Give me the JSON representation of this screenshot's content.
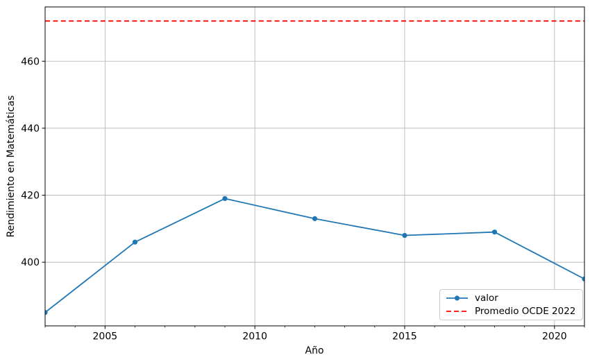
{
  "chart_data": {
    "type": "line",
    "title": "",
    "xlabel": "Año",
    "ylabel": "Rendimiento en Matemáticas",
    "x": [
      2003,
      2006,
      2009,
      2012,
      2015,
      2018,
      2021
    ],
    "series": [
      {
        "name": "valor",
        "color": "#1f77b4",
        "marker": "circle",
        "values": [
          385,
          406,
          419,
          413,
          408,
          409,
          395
        ]
      }
    ],
    "reference_line": {
      "label": "Promedio OCDE 2022",
      "value": 472,
      "color": "#ff0000",
      "line_style": "dashed"
    },
    "xlim": [
      2003,
      2021
    ],
    "ylim": [
      381,
      476.2
    ],
    "x_major_ticks": [
      2005,
      2010,
      2015,
      2020
    ],
    "x_minor_ticks": [
      2003,
      2004,
      2006,
      2007,
      2008,
      2009,
      2011,
      2012,
      2013,
      2014,
      2016,
      2017,
      2018,
      2019,
      2021
    ],
    "y_major_ticks": [
      400,
      420,
      440,
      460
    ],
    "grid": true,
    "legend": {
      "position": "lower right",
      "entries": [
        "valor",
        "Promedio OCDE 2022"
      ]
    },
    "colors": {
      "grid": "#b0b0b0",
      "spine": "#000000",
      "background": "#ffffff",
      "legend_border": "#cccccc",
      "text": "#000000"
    }
  }
}
